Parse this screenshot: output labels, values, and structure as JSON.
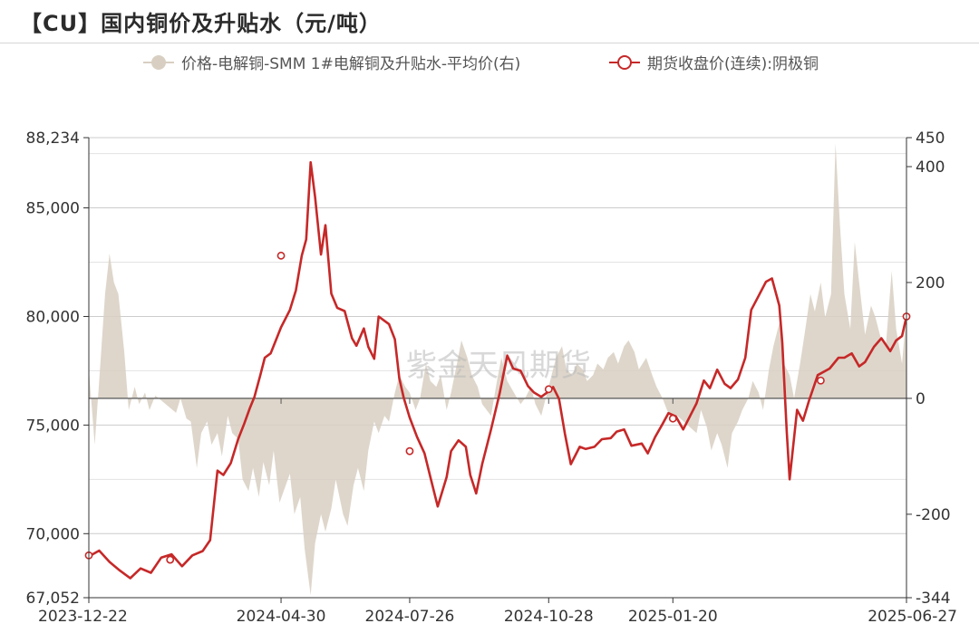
{
  "title": "【CU】国内铜价及升贴水（元/吨）",
  "watermark": "紫金天风期货",
  "colors": {
    "price_line": "#c62828",
    "spread_area": "#d8cfc2",
    "zero_line": "#555555",
    "grid": "#cccccc"
  },
  "chart_data": {
    "type": "line",
    "title": "【CU】国内铜价及升贴水（元/吨）",
    "legend": [
      "价格-电解铜-SMM 1#电解铜及升贴水-平均价(右)",
      "期货收盘价(连续):阴极铜"
    ],
    "legend_position": "top",
    "grid": true,
    "y_left_ticks": [
      "88,234",
      "85,000",
      "80,000",
      "75,000",
      "70,000",
      "67,052"
    ],
    "y_left_range": [
      67052,
      88234
    ],
    "y_right_ticks": [
      "450",
      "400",
      "200",
      "0",
      "-200",
      "-344"
    ],
    "y_right_range": [
      -344,
      450
    ],
    "x_tick_labels": [
      "2023-12-22",
      "2024-04-30",
      "2024-07-26",
      "2024-10-28",
      "2025-01-20",
      "2025-06-27"
    ],
    "x_range": [
      "2023-12-22",
      "2025-06-27"
    ],
    "series": [
      {
        "name": "期货收盘价(连续):阴极铜",
        "axis": "left",
        "type": "line",
        "points": [
          [
            "2023-12-22",
            68950
          ],
          [
            "2023-12-29",
            69220
          ],
          [
            "2024-01-05",
            68700
          ],
          [
            "2024-01-12",
            68300
          ],
          [
            "2024-01-19",
            67950
          ],
          [
            "2024-01-26",
            68400
          ],
          [
            "2024-02-02",
            68200
          ],
          [
            "2024-02-09",
            68900
          ],
          [
            "2024-02-16",
            69050
          ],
          [
            "2024-02-23",
            68500
          ],
          [
            "2024-03-01",
            69000
          ],
          [
            "2024-03-08",
            69200
          ],
          [
            "2024-03-13",
            69700
          ],
          [
            "2024-03-18",
            72900
          ],
          [
            "2024-03-22",
            72700
          ],
          [
            "2024-03-27",
            73250
          ],
          [
            "2024-04-01",
            74350
          ],
          [
            "2024-04-05",
            75050
          ],
          [
            "2024-04-09",
            75800
          ],
          [
            "2024-04-12",
            76300
          ],
          [
            "2024-04-16",
            77300
          ],
          [
            "2024-04-19",
            78100
          ],
          [
            "2024-04-23",
            78300
          ],
          [
            "2024-04-30",
            79500
          ],
          [
            "2024-05-06",
            80300
          ],
          [
            "2024-05-10",
            81200
          ],
          [
            "2024-05-14",
            82800
          ],
          [
            "2024-05-17",
            83550
          ],
          [
            "2024-05-20",
            87100
          ],
          [
            "2024-05-23",
            85500
          ],
          [
            "2024-05-27",
            82850
          ],
          [
            "2024-05-30",
            84200
          ],
          [
            "2024-06-03",
            81050
          ],
          [
            "2024-06-07",
            80400
          ],
          [
            "2024-06-12",
            80250
          ],
          [
            "2024-06-17",
            79000
          ],
          [
            "2024-06-20",
            78650
          ],
          [
            "2024-06-25",
            79450
          ],
          [
            "2024-06-28",
            78600
          ],
          [
            "2024-07-02",
            78050
          ],
          [
            "2024-07-05",
            80000
          ],
          [
            "2024-07-09",
            79800
          ],
          [
            "2024-07-12",
            79650
          ],
          [
            "2024-07-16",
            78950
          ],
          [
            "2024-07-19",
            77150
          ],
          [
            "2024-07-22",
            76250
          ],
          [
            "2024-07-26",
            75350
          ],
          [
            "2024-07-31",
            74450
          ],
          [
            "2024-08-05",
            73700
          ],
          [
            "2024-08-09",
            72600
          ],
          [
            "2024-08-14",
            71250
          ],
          [
            "2024-08-20",
            72600
          ],
          [
            "2024-08-23",
            73800
          ],
          [
            "2024-08-28",
            74300
          ],
          [
            "2024-09-02",
            74000
          ],
          [
            "2024-09-05",
            72700
          ],
          [
            "2024-09-09",
            71850
          ],
          [
            "2024-09-13",
            73200
          ],
          [
            "2024-09-19",
            74800
          ],
          [
            "2024-09-25",
            76500
          ],
          [
            "2024-09-30",
            78200
          ],
          [
            "2024-10-04",
            77600
          ],
          [
            "2024-10-09",
            77500
          ],
          [
            "2024-10-14",
            76800
          ],
          [
            "2024-10-18",
            76500
          ],
          [
            "2024-10-23",
            76300
          ],
          [
            "2024-10-28",
            76550
          ],
          [
            "2024-10-31",
            76750
          ],
          [
            "2024-11-04",
            76200
          ],
          [
            "2024-11-08",
            74600
          ],
          [
            "2024-11-12",
            73200
          ],
          [
            "2024-11-18",
            74000
          ],
          [
            "2024-11-22",
            73900
          ],
          [
            "2024-11-28",
            74000
          ],
          [
            "2024-12-03",
            74350
          ],
          [
            "2024-12-09",
            74400
          ],
          [
            "2024-12-13",
            74700
          ],
          [
            "2024-12-18",
            74800
          ],
          [
            "2024-12-23",
            74050
          ],
          [
            "2024-12-30",
            74150
          ],
          [
            "2025-01-03",
            73700
          ],
          [
            "2025-01-08",
            74450
          ],
          [
            "2025-01-13",
            75050
          ],
          [
            "2025-01-17",
            75550
          ],
          [
            "2025-01-22",
            75400
          ],
          [
            "2025-01-27",
            74800
          ],
          [
            "2025-02-05",
            76000
          ],
          [
            "2025-02-10",
            77050
          ],
          [
            "2025-02-14",
            76700
          ],
          [
            "2025-02-19",
            77550
          ],
          [
            "2025-02-24",
            76900
          ],
          [
            "2025-02-28",
            76700
          ],
          [
            "2025-03-05",
            77100
          ],
          [
            "2025-03-10",
            78100
          ],
          [
            "2025-03-14",
            80300
          ],
          [
            "2025-03-19",
            80950
          ],
          [
            "2025-03-24",
            81600
          ],
          [
            "2025-03-28",
            81750
          ],
          [
            "2025-04-02",
            80500
          ],
          [
            "2025-04-04",
            78800
          ],
          [
            "2025-04-07",
            74700
          ],
          [
            "2025-04-09",
            72500
          ],
          [
            "2025-04-14",
            75700
          ],
          [
            "2025-04-18",
            75200
          ],
          [
            "2025-04-22",
            76100
          ],
          [
            "2025-04-28",
            77300
          ],
          [
            "2025-05-06",
            77600
          ],
          [
            "2025-05-12",
            78100
          ],
          [
            "2025-05-16",
            78100
          ],
          [
            "2025-05-21",
            78300
          ],
          [
            "2025-05-26",
            77700
          ],
          [
            "2025-05-30",
            77900
          ],
          [
            "2025-06-05",
            78600
          ],
          [
            "2025-06-10",
            79000
          ],
          [
            "2025-06-16",
            78400
          ],
          [
            "2025-06-20",
            78900
          ],
          [
            "2025-06-24",
            79100
          ],
          [
            "2025-06-27",
            80000
          ]
        ]
      },
      {
        "name": "价格-电解铜-SMM 1#电解铜及升贴水-平均价(右)",
        "axis": "right",
        "type": "area",
        "points": [
          [
            "2023-12-22",
            50
          ],
          [
            "2023-12-26",
            -80
          ],
          [
            "2023-12-29",
            30
          ],
          [
            "2024-01-02",
            180
          ],
          [
            "2024-01-05",
            250
          ],
          [
            "2024-01-08",
            200
          ],
          [
            "2024-01-11",
            180
          ],
          [
            "2024-01-15",
            80
          ],
          [
            "2024-01-18",
            -20
          ],
          [
            "2024-01-22",
            20
          ],
          [
            "2024-01-25",
            -10
          ],
          [
            "2024-01-29",
            10
          ],
          [
            "2024-02-01",
            -20
          ],
          [
            "2024-02-05",
            5
          ],
          [
            "2024-02-19",
            -25
          ],
          [
            "2024-02-22",
            0
          ],
          [
            "2024-02-26",
            -35
          ],
          [
            "2024-02-29",
            -40
          ],
          [
            "2024-03-04",
            -120
          ],
          [
            "2024-03-07",
            -60
          ],
          [
            "2024-03-11",
            -40
          ],
          [
            "2024-03-14",
            -80
          ],
          [
            "2024-03-18",
            -60
          ],
          [
            "2024-03-21",
            -100
          ],
          [
            "2024-03-25",
            -30
          ],
          [
            "2024-03-28",
            -60
          ],
          [
            "2024-04-01",
            -70
          ],
          [
            "2024-04-04",
            -140
          ],
          [
            "2024-04-08",
            -160
          ],
          [
            "2024-04-11",
            -120
          ],
          [
            "2024-04-15",
            -170
          ],
          [
            "2024-04-18",
            -110
          ],
          [
            "2024-04-22",
            -150
          ],
          [
            "2024-04-25",
            -90
          ],
          [
            "2024-04-29",
            -180
          ],
          [
            "2024-05-06",
            -130
          ],
          [
            "2024-05-09",
            -200
          ],
          [
            "2024-05-13",
            -170
          ],
          [
            "2024-05-16",
            -260
          ],
          [
            "2024-05-20",
            -340
          ],
          [
            "2024-05-23",
            -250
          ],
          [
            "2024-05-27",
            -200
          ],
          [
            "2024-05-30",
            -230
          ],
          [
            "2024-06-03",
            -190
          ],
          [
            "2024-06-06",
            -140
          ],
          [
            "2024-06-11",
            -200
          ],
          [
            "2024-06-14",
            -220
          ],
          [
            "2024-06-18",
            -150
          ],
          [
            "2024-06-21",
            -120
          ],
          [
            "2024-06-25",
            -160
          ],
          [
            "2024-06-28",
            -90
          ],
          [
            "2024-07-02",
            -40
          ],
          [
            "2024-07-05",
            -60
          ],
          [
            "2024-07-09",
            -30
          ],
          [
            "2024-07-12",
            -40
          ],
          [
            "2024-07-16",
            10
          ],
          [
            "2024-07-19",
            40
          ],
          [
            "2024-07-23",
            20
          ],
          [
            "2024-07-26",
            10
          ],
          [
            "2024-07-30",
            -20
          ],
          [
            "2024-08-02",
            0
          ],
          [
            "2024-08-06",
            60
          ],
          [
            "2024-08-09",
            30
          ],
          [
            "2024-08-13",
            20
          ],
          [
            "2024-08-16",
            40
          ],
          [
            "2024-08-20",
            -20
          ],
          [
            "2024-08-23",
            10
          ],
          [
            "2024-08-27",
            60
          ],
          [
            "2024-08-30",
            100
          ],
          [
            "2024-09-03",
            70
          ],
          [
            "2024-09-06",
            40
          ],
          [
            "2024-09-10",
            20
          ],
          [
            "2024-09-13",
            -10
          ],
          [
            "2024-09-19",
            -30
          ],
          [
            "2024-09-23",
            30
          ],
          [
            "2024-09-26",
            70
          ],
          [
            "2024-09-30",
            30
          ],
          [
            "2024-10-09",
            -10
          ],
          [
            "2024-10-12",
            0
          ],
          [
            "2024-10-16",
            20
          ],
          [
            "2024-10-19",
            -10
          ],
          [
            "2024-10-23",
            -30
          ],
          [
            "2024-10-26",
            0
          ],
          [
            "2024-10-30",
            40
          ],
          [
            "2024-11-02",
            70
          ],
          [
            "2024-11-06",
            90
          ],
          [
            "2024-11-09",
            50
          ],
          [
            "2024-11-13",
            40
          ],
          [
            "2024-11-16",
            60
          ],
          [
            "2024-11-20",
            50
          ],
          [
            "2024-11-23",
            30
          ],
          [
            "2024-11-27",
            40
          ],
          [
            "2024-11-30",
            60
          ],
          [
            "2024-12-04",
            50
          ],
          [
            "2024-12-07",
            70
          ],
          [
            "2024-12-11",
            80
          ],
          [
            "2024-12-14",
            60
          ],
          [
            "2024-12-18",
            90
          ],
          [
            "2024-12-21",
            100
          ],
          [
            "2024-12-25",
            80
          ],
          [
            "2024-12-28",
            50
          ],
          [
            "2025-01-02",
            70
          ],
          [
            "2025-01-06",
            40
          ],
          [
            "2025-01-09",
            20
          ],
          [
            "2025-01-13",
            0
          ],
          [
            "2025-01-16",
            -20
          ],
          [
            "2025-01-20",
            -40
          ],
          [
            "2025-01-23",
            -30
          ],
          [
            "2025-02-05",
            -60
          ],
          [
            "2025-02-08",
            -20
          ],
          [
            "2025-02-12",
            -50
          ],
          [
            "2025-02-15",
            -90
          ],
          [
            "2025-02-19",
            -60
          ],
          [
            "2025-02-22",
            -80
          ],
          [
            "2025-02-26",
            -120
          ],
          [
            "2025-03-01",
            -60
          ],
          [
            "2025-03-05",
            -40
          ],
          [
            "2025-03-08",
            -20
          ],
          [
            "2025-03-12",
            0
          ],
          [
            "2025-03-15",
            30
          ],
          [
            "2025-03-19",
            10
          ],
          [
            "2025-03-22",
            -20
          ],
          [
            "2025-03-26",
            50
          ],
          [
            "2025-03-29",
            90
          ],
          [
            "2025-04-02",
            130
          ],
          [
            "2025-04-05",
            60
          ],
          [
            "2025-04-09",
            40
          ],
          [
            "2025-04-12",
            0
          ],
          [
            "2025-04-16",
            60
          ],
          [
            "2025-04-19",
            110
          ],
          [
            "2025-04-23",
            180
          ],
          [
            "2025-04-26",
            150
          ],
          [
            "2025-04-30",
            200
          ],
          [
            "2025-05-03",
            140
          ],
          [
            "2025-05-07",
            180
          ],
          [
            "2025-05-10",
            440
          ],
          [
            "2025-05-13",
            300
          ],
          [
            "2025-05-16",
            180
          ],
          [
            "2025-05-20",
            120
          ],
          [
            "2025-05-23",
            270
          ],
          [
            "2025-05-26",
            200
          ],
          [
            "2025-05-30",
            110
          ],
          [
            "2025-06-03",
            160
          ],
          [
            "2025-06-06",
            140
          ],
          [
            "2025-06-10",
            100
          ],
          [
            "2025-06-13",
            90
          ],
          [
            "2025-06-17",
            220
          ],
          [
            "2025-06-20",
            120
          ],
          [
            "2025-06-24",
            60
          ],
          [
            "2025-06-27",
            150
          ]
        ]
      }
    ],
    "markers": [
      [
        "2023-12-22",
        69000
      ],
      [
        "2024-02-15",
        68800
      ],
      [
        "2024-04-30",
        82800
      ],
      [
        "2024-07-26",
        73800
      ],
      [
        "2024-10-28",
        76650
      ],
      [
        "2025-01-20",
        75300
      ],
      [
        "2025-04-30",
        77050
      ],
      [
        "2025-06-27",
        80000
      ]
    ]
  }
}
